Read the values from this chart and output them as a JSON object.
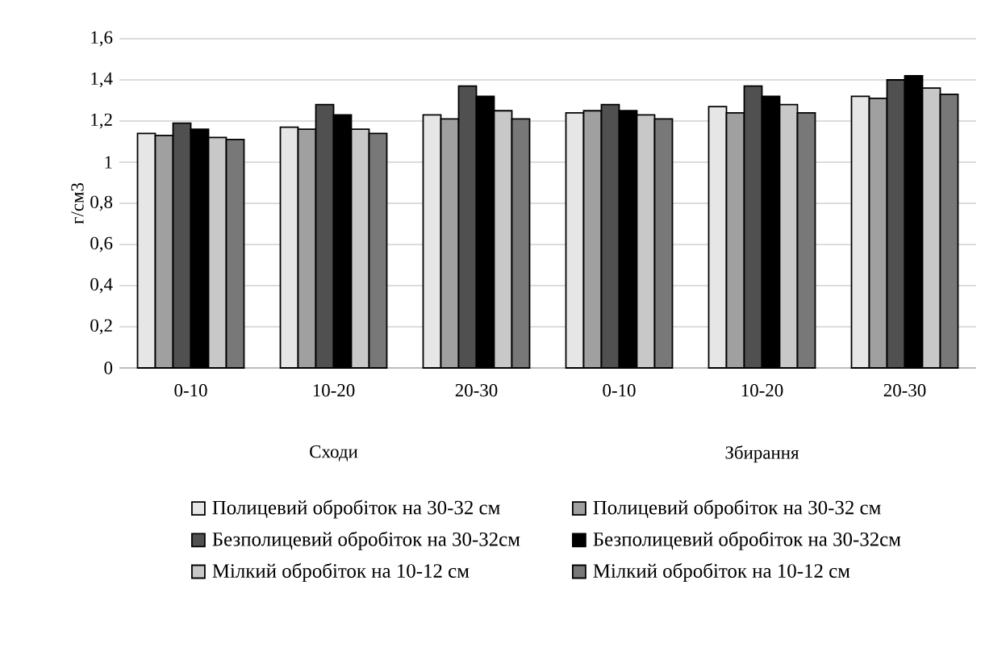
{
  "chart_data": {
    "type": "bar",
    "ylabel": "г/см3",
    "categories": [
      "0-10",
      "10-20",
      "20-30",
      "0-10",
      "10-20",
      "20-30"
    ],
    "annotations": [
      "Сходи",
      "Збирання"
    ],
    "series": [
      {
        "name": "Полицевий обробіток на 30-32 см",
        "color": "#e6e6e6",
        "values": [
          1.14,
          1.17,
          1.23,
          1.24,
          1.27,
          1.32
        ]
      },
      {
        "name": "Полицевий обробіток на 30-32 см",
        "color": "#a0a0a0",
        "values": [
          1.13,
          1.16,
          1.21,
          1.25,
          1.24,
          1.31
        ]
      },
      {
        "name": "Безполицевий обробіток на 30-32см",
        "color": "#505050",
        "values": [
          1.19,
          1.28,
          1.37,
          1.28,
          1.37,
          1.4
        ]
      },
      {
        "name": "Безполицевий обробіток на 30-32см",
        "color": "#000000",
        "values": [
          1.16,
          1.23,
          1.32,
          1.25,
          1.32,
          1.42
        ]
      },
      {
        "name": "Мілкий обробіток на 10-12 см",
        "color": "#c8c8c8",
        "values": [
          1.12,
          1.16,
          1.25,
          1.23,
          1.28,
          1.36
        ]
      },
      {
        "name": "Мілкий обробіток на 10-12 см",
        "color": "#787878",
        "values": [
          1.11,
          1.14,
          1.21,
          1.21,
          1.24,
          1.33
        ]
      }
    ],
    "ylim": [
      0,
      1.6
    ],
    "yticks": [
      0,
      {
        "value": 0.2,
        "label": "0,2"
      },
      {
        "value": 0.4,
        "label": "0,4"
      },
      {
        "value": 0.6,
        "label": "0,6"
      },
      {
        "value": 0.8,
        "label": "0,8"
      },
      1,
      {
        "value": 1.2,
        "label": "1,2"
      },
      {
        "value": 1.4,
        "label": "1,4"
      },
      {
        "value": 1.6,
        "label": "1,6"
      }
    ],
    "grid": "y",
    "legend": "bottom"
  }
}
